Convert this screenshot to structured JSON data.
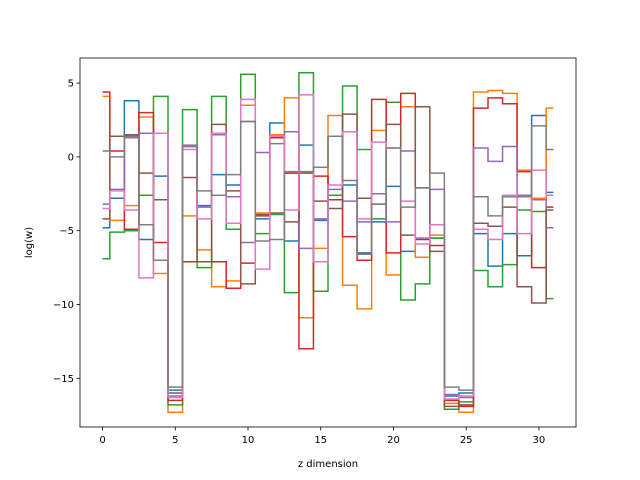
{
  "chart_data": {
    "type": "line",
    "drawstyle": "steps-mid",
    "title": "",
    "xlabel": "z dimension",
    "ylabel": "log(w)",
    "xlim": [
      -1.55,
      32.55
    ],
    "ylim": [
      -18.3,
      6.7
    ],
    "xticks": [
      0,
      5,
      10,
      15,
      20,
      25,
      30
    ],
    "yticks": [
      -15,
      -10,
      -5,
      0,
      5
    ],
    "grid": false,
    "legend": "none",
    "x": [
      0,
      1,
      2,
      3,
      4,
      5,
      6,
      7,
      8,
      9,
      10,
      11,
      12,
      13,
      14,
      15,
      16,
      17,
      18,
      19,
      20,
      21,
      22,
      23,
      24,
      25,
      26,
      27,
      28,
      29,
      30,
      31
    ],
    "series": [
      {
        "color": "#1f77b4",
        "values": [
          -4.8,
          -2.8,
          3.8,
          -5.6,
          -1.3,
          -15.8,
          0.7,
          -3.3,
          -1.2,
          -1.9,
          2.4,
          -4.2,
          2.3,
          -5.7,
          0.8,
          -4.3,
          1.4,
          -1.9,
          -6.5,
          -4.4,
          -2.0,
          -6.4,
          -2.1,
          -5.5,
          -16.2,
          -16.0,
          -5.2,
          -7.4,
          -5.2,
          -6.7,
          2.8,
          -2.4
        ]
      },
      {
        "color": "#ff7f0e",
        "values": [
          4.1,
          -4.3,
          -3.3,
          2.7,
          -7.9,
          -17.3,
          -4.0,
          -6.3,
          -8.8,
          -8.4,
          3.5,
          -3.8,
          1.5,
          4.0,
          -10.9,
          -6.2,
          2.8,
          -8.7,
          -10.3,
          1.8,
          -8.0,
          3.4,
          -6.8,
          -5.3,
          -16.7,
          -17.3,
          4.4,
          4.5,
          4.3,
          -0.9,
          -2.8,
          3.3
        ]
      },
      {
        "color": "#2ca02c",
        "values": [
          -6.9,
          -5.1,
          -5.0,
          -2.6,
          4.1,
          -16.8,
          3.2,
          -7.5,
          4.1,
          -4.9,
          5.6,
          -5.2,
          -3.9,
          -9.2,
          5.7,
          -9.1,
          -2.6,
          4.8,
          0.5,
          -4.2,
          3.7,
          -9.7,
          -8.6,
          -5.5,
          -17.1,
          -16.6,
          -7.7,
          -8.8,
          -7.3,
          -3.6,
          -3.7,
          -9.6
        ]
      },
      {
        "color": "#d62728",
        "values": [
          4.4,
          0.4,
          -4.9,
          3.0,
          -5.8,
          -16.5,
          -7.1,
          -7.1,
          -7.1,
          -8.9,
          -7.2,
          -4.0,
          1.3,
          -1.1,
          -13.0,
          -1.3,
          -2.9,
          -5.4,
          -7.0,
          3.9,
          -6.5,
          4.3,
          -5.6,
          -6.0,
          -16.5,
          -16.9,
          3.3,
          4.0,
          3.6,
          -1.0,
          -7.5,
          -3.4
        ]
      },
      {
        "color": "#9467bd",
        "values": [
          -3.2,
          -2.2,
          1.3,
          1.6,
          1.6,
          -16.2,
          0.7,
          -3.4,
          1.5,
          -2.7,
          -5.8,
          0.3,
          0.9,
          1.7,
          -6.2,
          -4.2,
          -2.2,
          -3.0,
          -4.4,
          -2.5,
          -4.4,
          0.4,
          -5.5,
          -2.2,
          -16.1,
          -16.3,
          0.6,
          -0.3,
          0.7,
          -2.6,
          -2.9,
          -4.8
        ]
      },
      {
        "color": "#8c564b",
        "values": [
          -4.2,
          1.4,
          1.5,
          -1.1,
          -2.9,
          -16.0,
          -1.4,
          -7.1,
          2.2,
          -2.3,
          -8.6,
          -3.9,
          -3.8,
          -4.4,
          -1.1,
          -3.0,
          -3.5,
          2.9,
          -2.8,
          -3.2,
          2.2,
          -5.3,
          3.4,
          -6.4,
          -16.9,
          -16.8,
          -4.5,
          -4.7,
          -3.4,
          -8.8,
          -9.9,
          -3.6
        ]
      },
      {
        "color": "#e377c2",
        "values": [
          -3.5,
          -2.3,
          -3.6,
          -8.2,
          1.6,
          -16.3,
          0.5,
          -4.2,
          1.6,
          -4.5,
          3.9,
          -7.6,
          1.4,
          -3.6,
          4.2,
          -7.1,
          -1.9,
          1.7,
          -4.2,
          1.0,
          0.6,
          -3.0,
          -5.9,
          -4.6,
          -16.4,
          -16.2,
          -4.9,
          -5.6,
          -2.6,
          -5.2,
          -0.9,
          -2.6
        ]
      },
      {
        "color": "#7f7f7f",
        "values": [
          0.4,
          0.0,
          1.4,
          -4.6,
          -7.0,
          -15.6,
          0.8,
          -2.3,
          -2.6,
          -1.2,
          2.4,
          -5.7,
          -5.6,
          -1.0,
          -1.0,
          -0.7,
          1.4,
          -1.6,
          -6.6,
          -3.2,
          0.6,
          -3.4,
          -2.1,
          -1.1,
          -15.6,
          -15.8,
          -2.7,
          -4.0,
          -2.7,
          -2.7,
          2.1,
          0.5
        ]
      }
    ]
  }
}
